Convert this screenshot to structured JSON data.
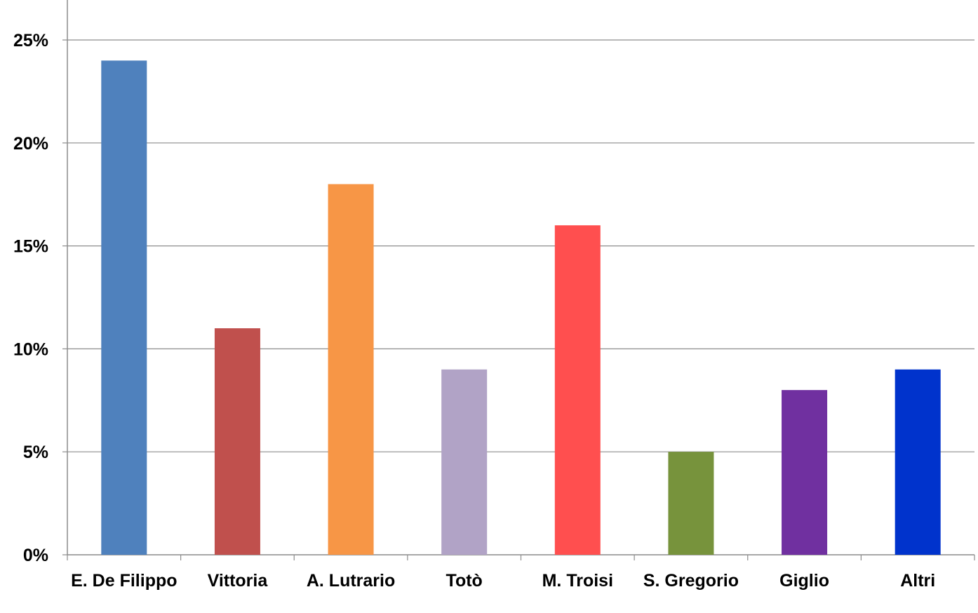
{
  "chart_data": {
    "type": "bar",
    "title": "",
    "xlabel": "",
    "ylabel": "",
    "categories": [
      "E. De Filippo",
      "Vittoria",
      "A. Lutrario",
      "Totò",
      "M. Troisi",
      "S. Gregorio",
      "Giglio",
      "Altri"
    ],
    "values": [
      24,
      11,
      18,
      9,
      16,
      5,
      8,
      9
    ],
    "bar_colors": [
      "#4F81BD",
      "#C0504D",
      "#F79646",
      "#B1A3C6",
      "#FF4F4F",
      "#77933C",
      "#7030A0",
      "#0033CC"
    ],
    "y_ticks": [
      0,
      5,
      10,
      15,
      20,
      25
    ],
    "y_tick_labels": [
      "0%",
      "5%",
      "10%",
      "15%",
      "20%",
      "25%"
    ],
    "ylim": [
      0,
      27
    ],
    "grid": true,
    "grid_color": "#8C8C8C",
    "legend": "none"
  }
}
